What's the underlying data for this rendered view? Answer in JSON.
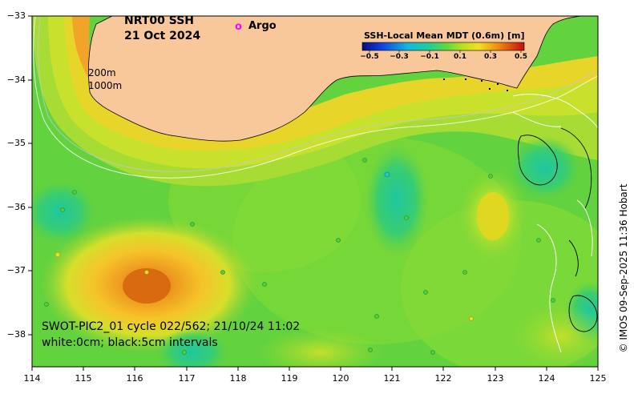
{
  "map": {
    "title_line1": "NRT00 SSH",
    "title_line2": "21 Oct 2024",
    "legend_marker": "o",
    "legend_label": "Argo",
    "legend_marker_color": "#ff00ff",
    "isobath_200": "200m",
    "isobath_1000": "1000m",
    "colorbar_title": "SSH-Local Mean MDT (0.6m) [m]",
    "colorbar_ticks": [
      "−0.5",
      "−0.3",
      "−0.1",
      "0.1",
      "0.3",
      "0.5"
    ],
    "swath_line1": "SWOT-PIC2_01 cycle 022/562; 21/10/24 11:02",
    "swath_line2": "white:0cm; black:5cm intervals",
    "credit": "© IMOS 09-Sep-2025 11:36 Hobart",
    "land_color": "#f9c89a",
    "extent": {
      "lon_min": 114,
      "lon_max": 125,
      "lat_min": -38.5,
      "lat_max": -33
    }
  },
  "axes": {
    "x_ticks": [
      "114",
      "115",
      "116",
      "117",
      "118",
      "119",
      "120",
      "121",
      "122",
      "123",
      "124",
      "125"
    ],
    "y_ticks": [
      "−33",
      "−34",
      "−35",
      "−36",
      "−37",
      "−38"
    ]
  }
}
